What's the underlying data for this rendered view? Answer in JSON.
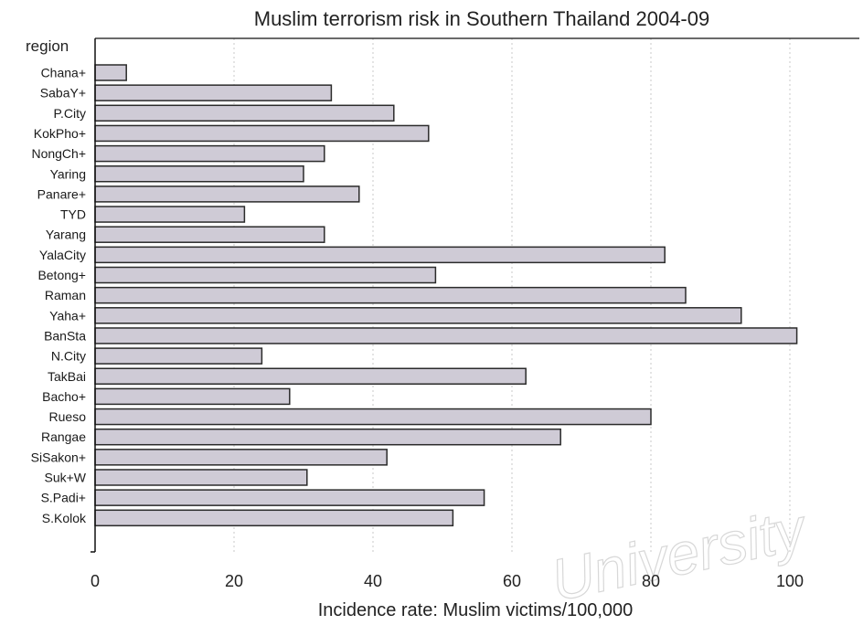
{
  "chart_data": {
    "type": "bar",
    "orientation": "horizontal",
    "title": "Muslim terrorism risk in Southern Thailand 2004-09",
    "xlabel": "Incidence rate: Muslim victims/100,000",
    "ylabel": "region",
    "xlim": [
      0,
      110
    ],
    "xticks": [
      0,
      20,
      40,
      60,
      80,
      100
    ],
    "grid": true,
    "bar_color": "#cfcbd6",
    "categories": [
      "Chana+",
      "SabaY+",
      "P.City",
      "KokPho+",
      "NongCh+",
      "Yaring",
      "Panare+",
      "TYD",
      "Yarang",
      "YalaCity",
      "Betong+",
      "Raman",
      "Yaha+",
      "BanSta",
      "N.City",
      "TakBai",
      "Bacho+",
      "Rueso",
      "Rangae",
      "SiSakon+",
      "Suk+W",
      "S.Padi+",
      "S.Kolok"
    ],
    "values": [
      4.5,
      34,
      43,
      48,
      33,
      30,
      38,
      21.5,
      33,
      82,
      49,
      85,
      93,
      101,
      24,
      62,
      28,
      80,
      67,
      42,
      30.5,
      56,
      51.5
    ]
  },
  "watermark": "University"
}
